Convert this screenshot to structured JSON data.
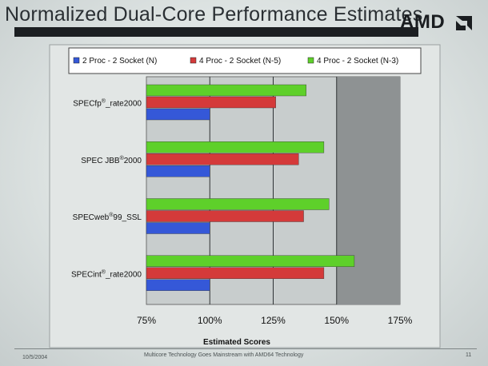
{
  "slide": {
    "title": "Normalized Dual-Core Performance Estimates",
    "logo_text": "AMD",
    "footer_date": "10/5/2004",
    "footer_text": "Multicore Technology Goes Mainstream with AMD64 Technology",
    "page_number": "11"
  },
  "chart_data": {
    "type": "bar",
    "orientation": "horizontal",
    "categories": [
      "SPECfp®_rate2000",
      "SPEC JBB®2000",
      "SPECweb®99_SSL",
      "SPECint®_rate2000"
    ],
    "series": [
      {
        "name": "2 Proc - 2 Socket (N)",
        "color": "#3558d8",
        "values": [
          100,
          100,
          100,
          100
        ]
      },
      {
        "name": "4 Proc - 2 Socket (N-5)",
        "color": "#d43a3a",
        "values": [
          126,
          135,
          137,
          145
        ]
      },
      {
        "name": "4 Proc - 2 Socket (N-3)",
        "color": "#5ed02a",
        "values": [
          138,
          145,
          147,
          157
        ]
      }
    ],
    "x_ticks": [
      "75%",
      "100%",
      "125%",
      "150%",
      "175%"
    ],
    "xlim": [
      75,
      175
    ],
    "xlabel": "Estimated Scores",
    "legend_position": "top",
    "shaded_region": [
      150,
      175
    ],
    "grid": true
  },
  "colors": {
    "plot_area": "#c8cdcd",
    "shaded_region": "#8e9293",
    "gridline": "#2f3335",
    "chart_panel": "#e2e6e5"
  }
}
